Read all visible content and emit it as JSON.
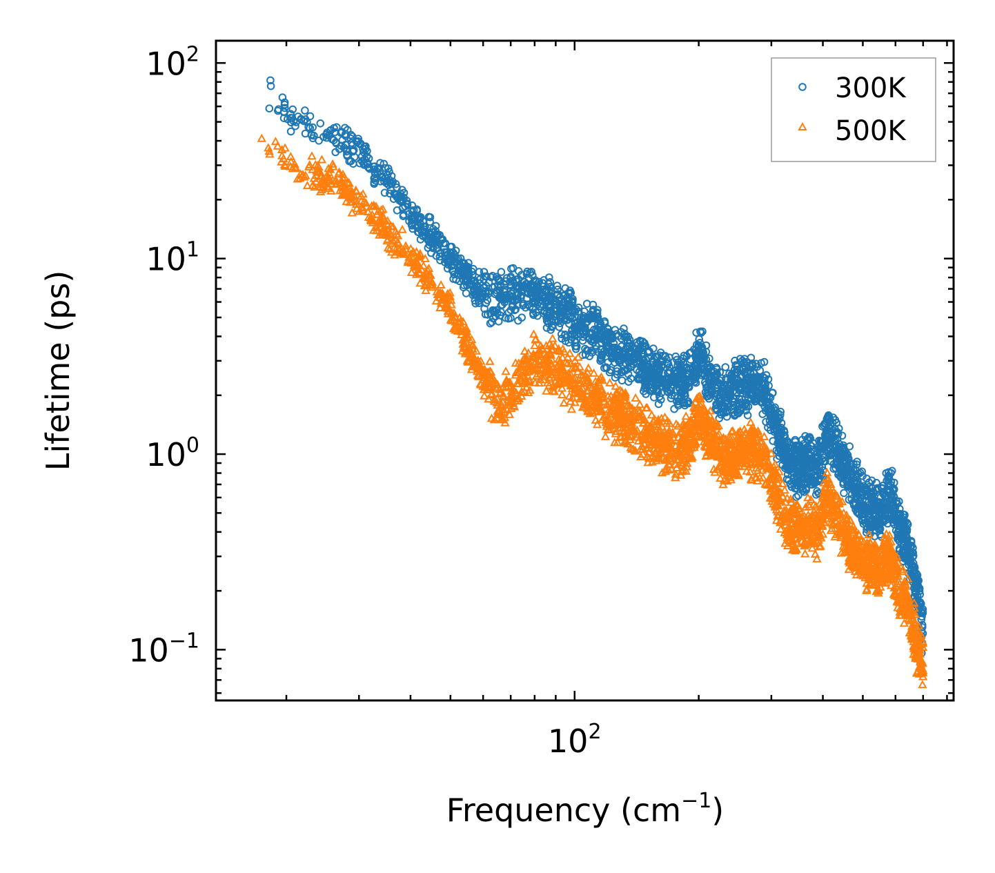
{
  "chart_data": {
    "type": "scatter",
    "title": "",
    "xlabel": "Frequency (cm",
    "xlabel_sup": "−1",
    "xlabel_end": ")",
    "ylabel": "Lifetime (ps)",
    "xscale": "log",
    "yscale": "log",
    "xlim": [
      13.5,
      830
    ],
    "ylim": [
      0.055,
      130
    ],
    "x_major_ticks": [
      {
        "value": 100,
        "base": "10",
        "exp": "2"
      }
    ],
    "y_major_ticks": [
      {
        "value": 0.1,
        "base": "10",
        "exp": "−1"
      },
      {
        "value": 1,
        "base": "10",
        "exp": "0"
      },
      {
        "value": 10,
        "base": "10",
        "exp": "1"
      },
      {
        "value": 100,
        "base": "10",
        "exp": "2"
      }
    ],
    "legend": {
      "position": "top-right"
    },
    "series": [
      {
        "name": "300K",
        "marker": "circle",
        "color": "#1f77b4",
        "trend": [
          [
            17,
            88
          ],
          [
            20,
            55
          ],
          [
            25,
            45
          ],
          [
            30,
            35
          ],
          [
            35,
            25
          ],
          [
            40,
            17
          ],
          [
            45,
            13
          ],
          [
            50,
            10
          ],
          [
            55,
            8
          ],
          [
            60,
            6.5
          ],
          [
            65,
            6
          ],
          [
            70,
            6.5
          ],
          [
            75,
            7
          ],
          [
            80,
            6.5
          ],
          [
            90,
            5.5
          ],
          [
            100,
            4.8
          ],
          [
            120,
            3.6
          ],
          [
            140,
            3.0
          ],
          [
            160,
            2.5
          ],
          [
            180,
            2.3
          ],
          [
            190,
            2.4
          ],
          [
            200,
            3.3
          ],
          [
            210,
            2.6
          ],
          [
            230,
            2.0
          ],
          [
            250,
            2.2
          ],
          [
            270,
            2.3
          ],
          [
            290,
            2.1
          ],
          [
            310,
            1.3
          ],
          [
            330,
            0.9
          ],
          [
            350,
            0.85
          ],
          [
            370,
            0.9
          ],
          [
            390,
            0.82
          ],
          [
            410,
            1.3
          ],
          [
            430,
            1.1
          ],
          [
            460,
            0.8
          ],
          [
            500,
            0.58
          ],
          [
            550,
            0.5
          ],
          [
            580,
            0.65
          ],
          [
            620,
            0.4
          ],
          [
            650,
            0.3
          ],
          [
            680,
            0.18
          ],
          [
            700,
            0.12
          ]
        ]
      },
      {
        "name": "500K",
        "marker": "triangle",
        "color": "#ff7f0e",
        "trend": [
          [
            17,
            46
          ],
          [
            20,
            30
          ],
          [
            25,
            26
          ],
          [
            30,
            20
          ],
          [
            35,
            14
          ],
          [
            40,
            10
          ],
          [
            45,
            7.5
          ],
          [
            50,
            5.5
          ],
          [
            55,
            3.5
          ],
          [
            60,
            2.5
          ],
          [
            65,
            1.8
          ],
          [
            70,
            2.0
          ],
          [
            75,
            2.6
          ],
          [
            80,
            3.0
          ],
          [
            90,
            2.7
          ],
          [
            100,
            2.3
          ],
          [
            120,
            1.7
          ],
          [
            140,
            1.4
          ],
          [
            160,
            1.15
          ],
          [
            180,
            1.05
          ],
          [
            190,
            1.2
          ],
          [
            200,
            1.6
          ],
          [
            210,
            1.3
          ],
          [
            230,
            0.95
          ],
          [
            250,
            1.0
          ],
          [
            270,
            1.05
          ],
          [
            290,
            0.95
          ],
          [
            310,
            0.6
          ],
          [
            330,
            0.45
          ],
          [
            350,
            0.42
          ],
          [
            370,
            0.45
          ],
          [
            390,
            0.4
          ],
          [
            410,
            0.62
          ],
          [
            430,
            0.5
          ],
          [
            460,
            0.35
          ],
          [
            500,
            0.28
          ],
          [
            550,
            0.26
          ],
          [
            580,
            0.3
          ],
          [
            620,
            0.2
          ],
          [
            650,
            0.15
          ],
          [
            680,
            0.1
          ],
          [
            700,
            0.08
          ]
        ]
      }
    ]
  }
}
